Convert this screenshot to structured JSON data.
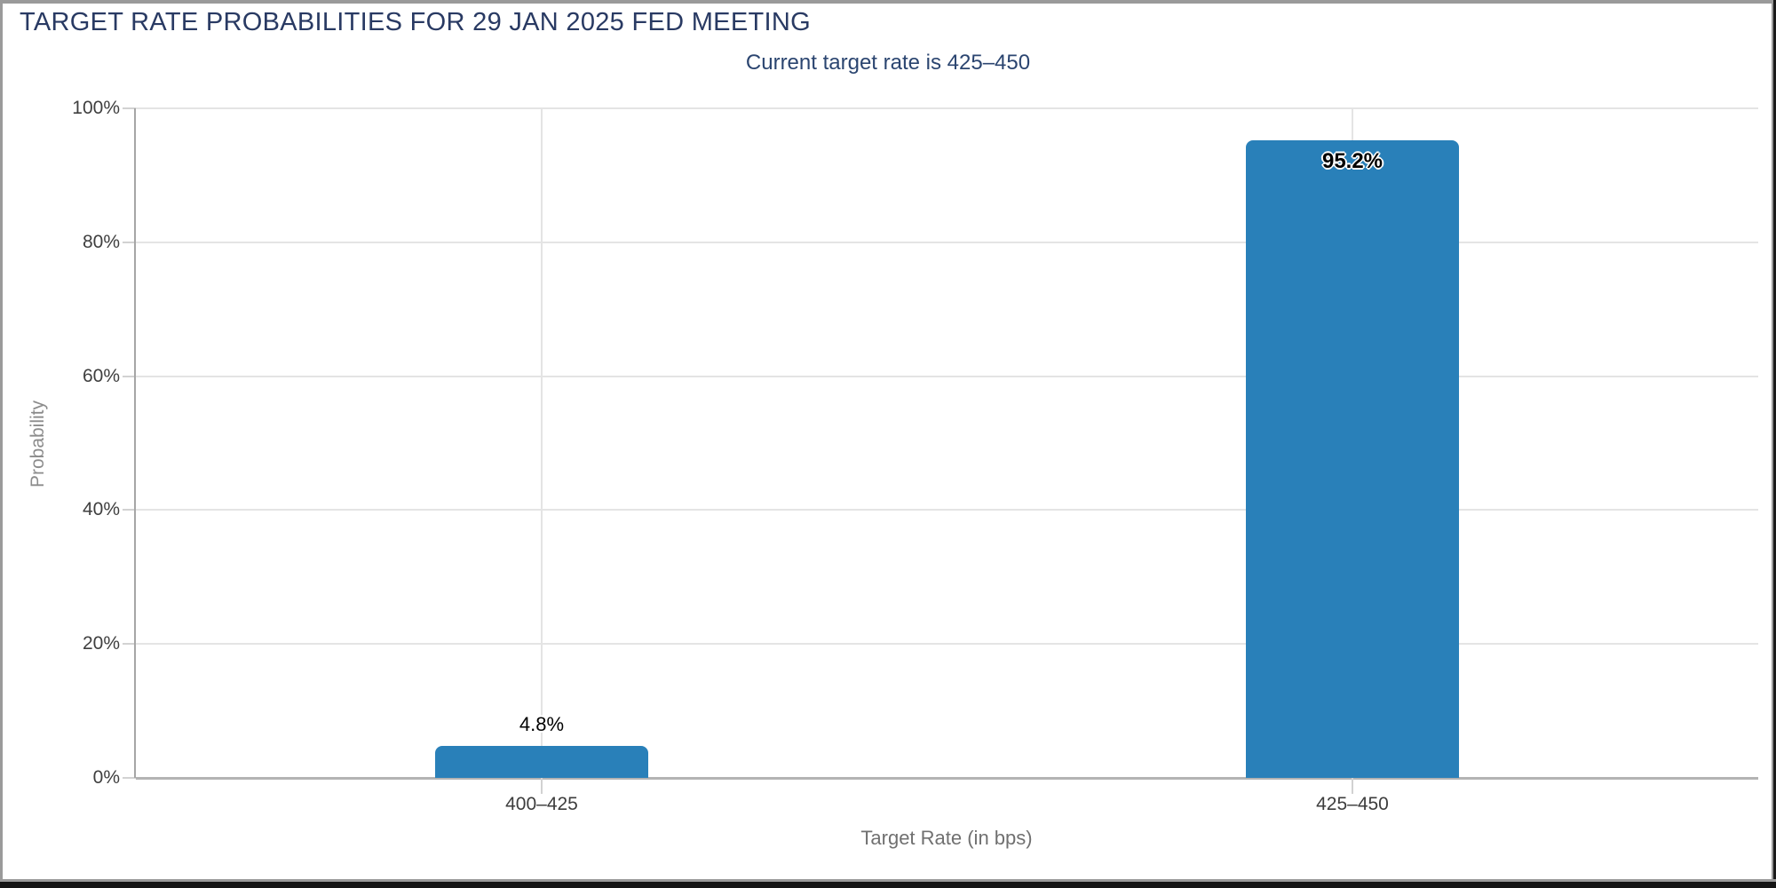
{
  "chart_data": {
    "type": "bar",
    "title": "TARGET RATE PROBABILITIES FOR 29 JAN 2025 FED MEETING",
    "subtitle": "Current target rate is 425–450",
    "categories": [
      "400–425",
      "425–450"
    ],
    "values": [
      4.8,
      95.2
    ],
    "data_labels": [
      "4.8%",
      "95.2%"
    ],
    "xlabel": "Target Rate (in bps)",
    "ylabel": "Probability",
    "ylim": [
      0,
      100
    ],
    "yticks": [
      {
        "value": 0,
        "label": "0%"
      },
      {
        "value": 20,
        "label": "20%"
      },
      {
        "value": 40,
        "label": "40%"
      },
      {
        "value": 60,
        "label": "60%"
      },
      {
        "value": 80,
        "label": "80%"
      },
      {
        "value": 100,
        "label": "100%"
      }
    ],
    "grid": true,
    "legend": "none",
    "colors": {
      "bar": "#2980b9",
      "title": "#293a63",
      "subtitle": "#2b4570"
    },
    "data_label_inside_threshold": 50
  }
}
